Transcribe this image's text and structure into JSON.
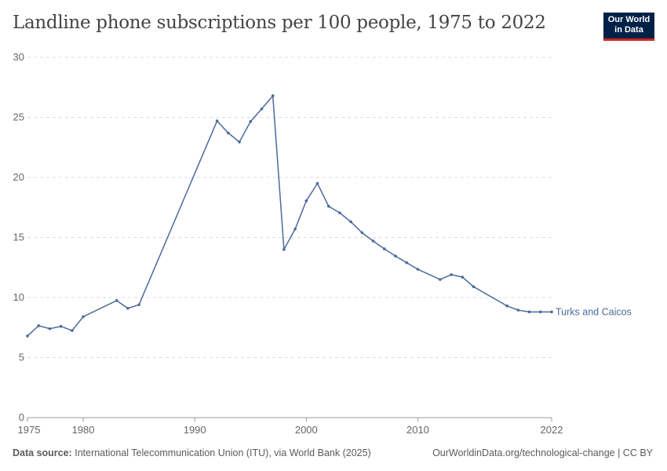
{
  "chart_data": {
    "type": "line",
    "title": "Landline phone subscriptions per 100 people, 1975 to 2022",
    "xlabel": "",
    "ylabel": "",
    "xlim": [
      1975,
      2022
    ],
    "ylim": [
      0,
      30
    ],
    "x_ticks": [
      1975,
      1980,
      1990,
      2000,
      2010,
      2022
    ],
    "y_ticks": [
      0,
      5,
      10,
      15,
      20,
      25,
      30
    ],
    "grid": "horizontal dashed",
    "series": [
      {
        "name": "Turks and Caicos",
        "color": "#4c6a9c",
        "x": [
          1975,
          1976,
          1977,
          1978,
          1979,
          1980,
          1983,
          1984,
          1985,
          1992,
          1993,
          1994,
          1995,
          1996,
          1997,
          1998,
          1999,
          2000,
          2001,
          2002,
          2003,
          2004,
          2005,
          2006,
          2007,
          2008,
          2009,
          2010,
          2012,
          2013,
          2014,
          2015,
          2018,
          2019,
          2020,
          2021,
          2022
        ],
        "y": [
          6.8,
          7.65,
          7.4,
          7.6,
          7.25,
          8.4,
          9.75,
          9.1,
          9.4,
          24.7,
          23.7,
          22.95,
          24.65,
          25.7,
          26.8,
          14.0,
          15.7,
          18.05,
          19.5,
          17.6,
          17.05,
          16.3,
          15.4,
          14.7,
          14.05,
          13.45,
          12.9,
          12.35,
          11.5,
          11.9,
          11.7,
          10.9,
          9.3,
          8.95,
          8.8,
          8.8,
          8.8
        ]
      }
    ]
  },
  "logo": {
    "line1": "Our World",
    "line2": "in Data"
  },
  "footer": {
    "source_label": "Data source:",
    "source_text": "International Telecommunication Union (ITU), via World Bank (2025)",
    "right_text": "OurWorldinData.org/technological-change | CC BY"
  }
}
